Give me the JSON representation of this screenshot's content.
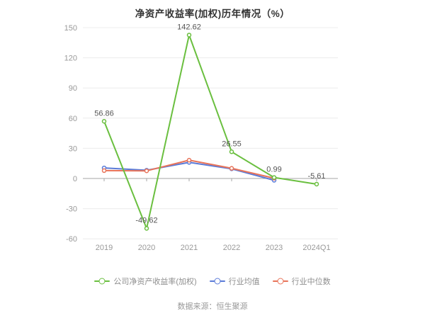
{
  "title": "净资产收益率(加权)历年情况（%）",
  "source_note": "数据来源：恒生聚源",
  "colors": {
    "background": "#ffffff",
    "title_text": "#333333",
    "axis_text": "#999999",
    "data_label_text": "#555555",
    "legend_text": "#8e8e8e",
    "grid": "#ececec",
    "axis": "#a6a6a6",
    "company_green": "#6abf3f",
    "industry_avg_blue": "#5b7bd8",
    "industry_median_orange": "#e8745a"
  },
  "chart_data": {
    "type": "line",
    "title": "净资产收益率(加权)历年情况（%）",
    "categories": [
      "2019",
      "2020",
      "2021",
      "2022",
      "2023",
      "2024Q1"
    ],
    "series": [
      {
        "name": "公司净资产收益率(加权)",
        "color": "#6abf3f",
        "values": [
          56.86,
          -49.62,
          142.62,
          26.55,
          0.99,
          -5.61
        ],
        "labeled": true
      },
      {
        "name": "行业均值",
        "color": "#5b7bd8",
        "values": [
          10.5,
          8.2,
          16.0,
          9.6,
          -1.8,
          null
        ],
        "labeled": false
      },
      {
        "name": "行业中位数",
        "color": "#e8745a",
        "values": [
          7.8,
          7.6,
          18.2,
          10.1,
          0.3,
          null
        ],
        "labeled": false
      }
    ],
    "point_labels": [
      "56.86",
      "-49.62",
      "142.62",
      "26.55",
      "0.99",
      "-5.61"
    ],
    "yticks": [
      150,
      120,
      90,
      60,
      30,
      0,
      -30,
      -60
    ],
    "ylim": [
      -60,
      150
    ],
    "grid": true,
    "legend_position": "bottom",
    "marker": "hollow-circle"
  }
}
